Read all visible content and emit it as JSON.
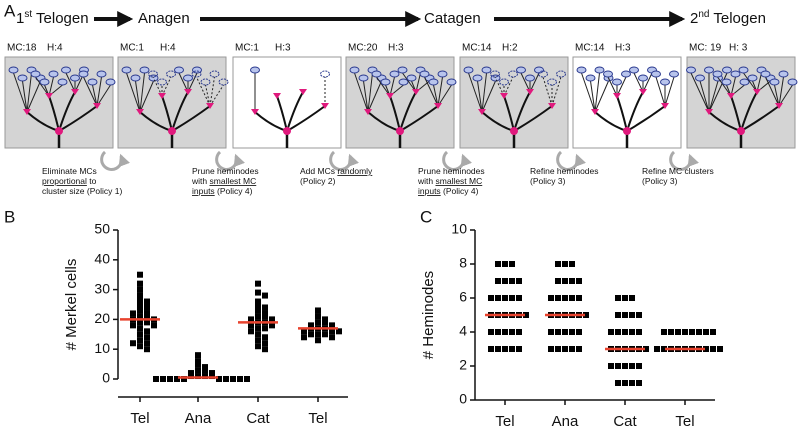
{
  "panel_a": {
    "letter": "A",
    "stages": [
      {
        "number": "1",
        "suffix": "st",
        "name": " Telogen"
      },
      {
        "name": "Anagen"
      },
      {
        "name": "Catagen"
      },
      {
        "number": "2",
        "suffix": "nd",
        "name": " Telogen"
      }
    ],
    "counts": [
      "MC:18",
      "H:4",
      "MC:1",
      "H:4",
      "MC:1",
      "H:3",
      "MC:20",
      "H:3",
      "MC:14",
      "H:2",
      "MC:14",
      "H:3",
      "MC: 19",
      "H: 3"
    ],
    "policies": [
      [
        [
          {
            "text": "Eliminate MCs "
          }
        ],
        [
          {
            "text": "proportional",
            "underline": true
          },
          {
            "text": " to"
          }
        ],
        [
          {
            "text": "cluster size (Policy 1)"
          }
        ]
      ],
      [
        [
          {
            "text": "Prune heminodes"
          }
        ],
        [
          {
            "text": "with "
          },
          {
            "text": "smallest MC",
            "underline": true
          }
        ],
        [
          {
            "text": "inputs",
            "underline": true
          },
          {
            "text": " (Policy 4)"
          }
        ]
      ],
      [
        [
          {
            "text": "Add MCs "
          },
          {
            "text": "randomly",
            "underline": true
          }
        ],
        [
          {
            "text": "(Policy 2)"
          }
        ]
      ],
      [
        [
          {
            "text": "Prune heminodes"
          }
        ],
        [
          {
            "text": "with "
          },
          {
            "text": "smallest MC",
            "underline": true
          }
        ],
        [
          {
            "text": "inputs",
            "underline": true
          },
          {
            "text": " (Policy 4)"
          }
        ]
      ],
      [
        [
          {
            "text": "Refine heminodes"
          }
        ],
        [
          {
            "text": "(Policy 3)"
          }
        ]
      ],
      [
        [
          {
            "text": "Refine MC clusters"
          }
        ],
        [
          {
            "text": "(Policy 3)"
          }
        ]
      ]
    ]
  },
  "chart_data": [
    {
      "type": "strip",
      "letter": "B",
      "y_label": "# Merkel cells",
      "categories": [
        "Tel",
        "Ana",
        "Cat",
        "Tel"
      ],
      "values": [
        [
          35,
          32,
          30,
          28,
          27,
          26,
          25,
          24,
          23,
          22,
          22,
          21,
          21,
          20,
          20,
          19,
          19,
          18,
          18,
          17,
          16,
          15,
          14,
          13,
          12,
          12,
          11,
          10
        ],
        [
          8,
          6,
          5,
          4,
          3,
          3,
          2,
          2,
          1,
          1,
          1,
          1,
          0,
          0,
          0,
          0,
          0,
          0,
          0,
          0,
          0,
          0
        ],
        [
          32,
          29,
          28,
          26,
          25,
          24,
          23,
          22,
          21,
          21,
          20,
          20,
          19,
          19,
          18,
          18,
          17,
          17,
          16,
          15,
          14,
          13,
          12,
          11,
          10
        ],
        [
          23,
          21,
          20,
          19,
          19,
          18,
          18,
          17,
          17,
          17,
          16,
          16,
          16,
          15,
          15,
          15,
          14,
          14,
          13
        ]
      ],
      "means": [
        20,
        0.5,
        19,
        17
      ],
      "color": "#000000",
      "mean_color": "#e8432e",
      "ylim": [
        0,
        50
      ],
      "yticks": [
        0,
        10,
        20,
        30,
        40,
        50
      ]
    },
    {
      "type": "strip",
      "letter": "C",
      "y_label": "# Heminodes",
      "categories": [
        "Tel",
        "Ana",
        "Cat",
        "Tel"
      ],
      "values": [
        [
          8,
          8,
          8,
          7,
          7,
          7,
          7,
          6,
          6,
          6,
          6,
          6,
          5,
          5,
          5,
          5,
          5,
          5,
          4,
          4,
          4,
          4,
          4,
          3,
          3,
          3,
          3,
          3
        ],
        [
          8,
          8,
          8,
          7,
          7,
          7,
          7,
          6,
          6,
          6,
          6,
          6,
          5,
          5,
          5,
          5,
          5,
          5,
          4,
          4,
          4,
          4,
          4,
          3,
          3,
          3,
          3,
          3
        ],
        [
          6,
          6,
          6,
          5,
          5,
          5,
          5,
          4,
          4,
          4,
          4,
          4,
          3,
          3,
          3,
          3,
          3,
          3,
          2,
          2,
          2,
          2,
          2,
          1,
          1,
          1,
          1
        ],
        [
          4,
          4,
          4,
          4,
          4,
          4,
          4,
          4,
          3,
          3,
          3,
          3,
          3,
          3,
          3,
          3,
          3,
          3
        ]
      ],
      "means": [
        5,
        5,
        3,
        3
      ],
      "color": "#000000",
      "mean_color": "#e8432e",
      "ylim": [
        0,
        10
      ],
      "yticks": [
        0,
        2,
        4,
        6,
        8,
        10
      ]
    }
  ]
}
